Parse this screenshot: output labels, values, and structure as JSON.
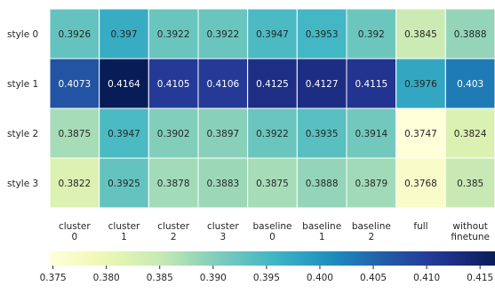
{
  "chart_data": {
    "type": "heatmap",
    "title": "",
    "xlabel": "",
    "ylabel": "",
    "rows": [
      "style 0",
      "style 1",
      "style 2",
      "style 3"
    ],
    "columns": [
      [
        "cluster",
        "0"
      ],
      [
        "cluster",
        "1"
      ],
      [
        "cluster",
        "2"
      ],
      [
        "cluster",
        "3"
      ],
      [
        "baseline",
        "0"
      ],
      [
        "baseline",
        "1"
      ],
      [
        "baseline",
        "2"
      ],
      [
        "full"
      ],
      [
        "without",
        "finetune"
      ]
    ],
    "values": [
      [
        0.3926,
        0.397,
        0.3922,
        0.3922,
        0.3947,
        0.3953,
        0.392,
        0.3845,
        0.3888
      ],
      [
        0.4073,
        0.4164,
        0.4105,
        0.4106,
        0.4125,
        0.4127,
        0.4115,
        0.3976,
        0.403
      ],
      [
        0.3875,
        0.3947,
        0.3902,
        0.3897,
        0.3922,
        0.3935,
        0.3914,
        0.3747,
        0.3824
      ],
      [
        0.3822,
        0.3925,
        0.3878,
        0.3883,
        0.3875,
        0.3888,
        0.3879,
        0.3768,
        0.385
      ]
    ],
    "value_labels": [
      [
        "0.3926",
        "0.397",
        "0.3922",
        "0.3922",
        "0.3947",
        "0.3953",
        "0.392",
        "0.3845",
        "0.3888"
      ],
      [
        "0.4073",
        "0.4164",
        "0.4105",
        "0.4106",
        "0.4125",
        "0.4127",
        "0.4115",
        "0.3976",
        "0.403"
      ],
      [
        "0.3875",
        "0.3947",
        "0.3902",
        "0.3897",
        "0.3922",
        "0.3935",
        "0.3914",
        "0.3747",
        "0.3824"
      ],
      [
        "0.3822",
        "0.3925",
        "0.3878",
        "0.3883",
        "0.3875",
        "0.3888",
        "0.3879",
        "0.3768",
        "0.385"
      ]
    ],
    "colormap": "YlGnBu",
    "colorbar": {
      "orientation": "horizontal",
      "range": [
        0.3747,
        0.4164
      ],
      "ticks": [
        0.375,
        0.38,
        0.385,
        0.39,
        0.395,
        0.4,
        0.405,
        0.41,
        0.415
      ],
      "tick_labels": [
        "0.375",
        "0.380",
        "0.385",
        "0.390",
        "0.395",
        "0.400",
        "0.405",
        "0.410",
        "0.415"
      ]
    }
  }
}
